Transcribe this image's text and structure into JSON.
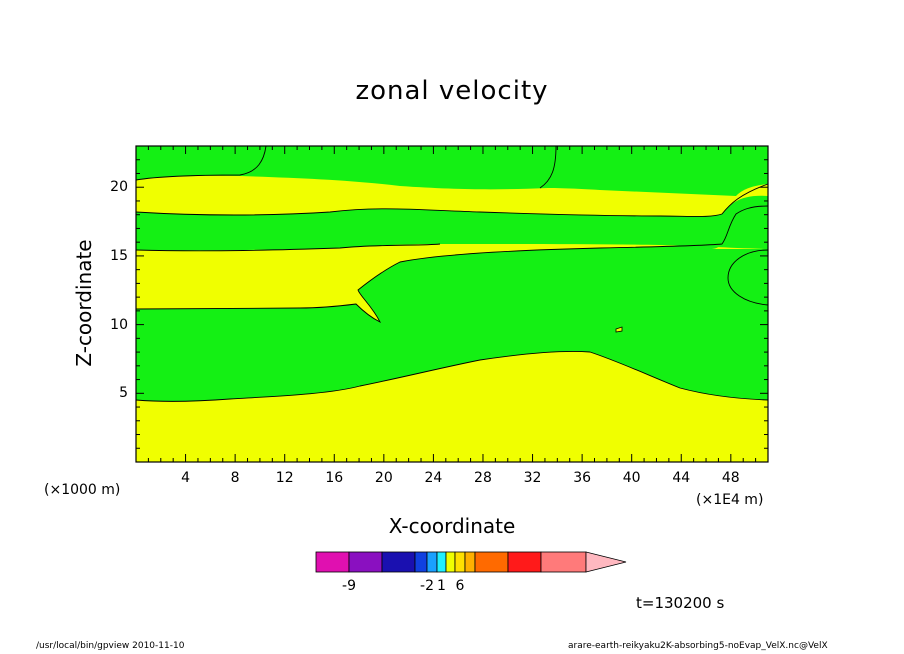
{
  "chart_data": {
    "type": "heatmap",
    "title": "zonal velocity",
    "xlabel": "X-coordinate",
    "ylabel": "Z-coordinate",
    "x_unit": "(×1000 m)",
    "x_unit_right": "(×1E4 m)",
    "xlim": [
      0,
      51
    ],
    "ylim": [
      0,
      23
    ],
    "x_ticks": [
      4,
      8,
      12,
      16,
      20,
      24,
      28,
      32,
      36,
      40,
      44,
      48
    ],
    "y_ticks": [
      5,
      10,
      15,
      20
    ],
    "colorbar": {
      "colors": [
        "#e010b0",
        "#8a10c0",
        "#1a10b0",
        "#1040e0",
        "#1aa0ff",
        "#20f0ff",
        "#f0ff00",
        "#ffe000",
        "#ffb000",
        "#ff6a00",
        "#ff1a1a",
        "#ff7a7a",
        "#ffb8c0"
      ],
      "tick_labels": [
        {
          "value": "-9",
          "segment": 1
        },
        {
          "value": "-2",
          "segment": 4
        },
        {
          "value": "1",
          "segment": 5.5
        },
        {
          "value": "6",
          "segment": 7.5
        }
      ]
    },
    "regions": [
      {
        "name": "band-bottom-yellow",
        "color": "yellow"
      },
      {
        "name": "band-lower-green",
        "color": "green"
      },
      {
        "name": "band-middle-yellow",
        "color": "yellow"
      },
      {
        "name": "band-upper-green",
        "color": "green"
      },
      {
        "name": "band-top-yellow",
        "color": "yellow"
      },
      {
        "name": "top-left-green",
        "color": "green"
      },
      {
        "name": "top-right-green",
        "color": "green"
      },
      {
        "name": "right-green-bubble",
        "color": "green"
      }
    ],
    "colors": {
      "yellow": "#f0ff00",
      "green": "#14f014"
    }
  },
  "time_label": "t=130200 s",
  "footer": {
    "left": "/usr/local/bin/gpview   2010-11-10",
    "right": "arare-earth-reikyaku2K-absorbing5-noEvap_VelX.nc@VelX"
  }
}
